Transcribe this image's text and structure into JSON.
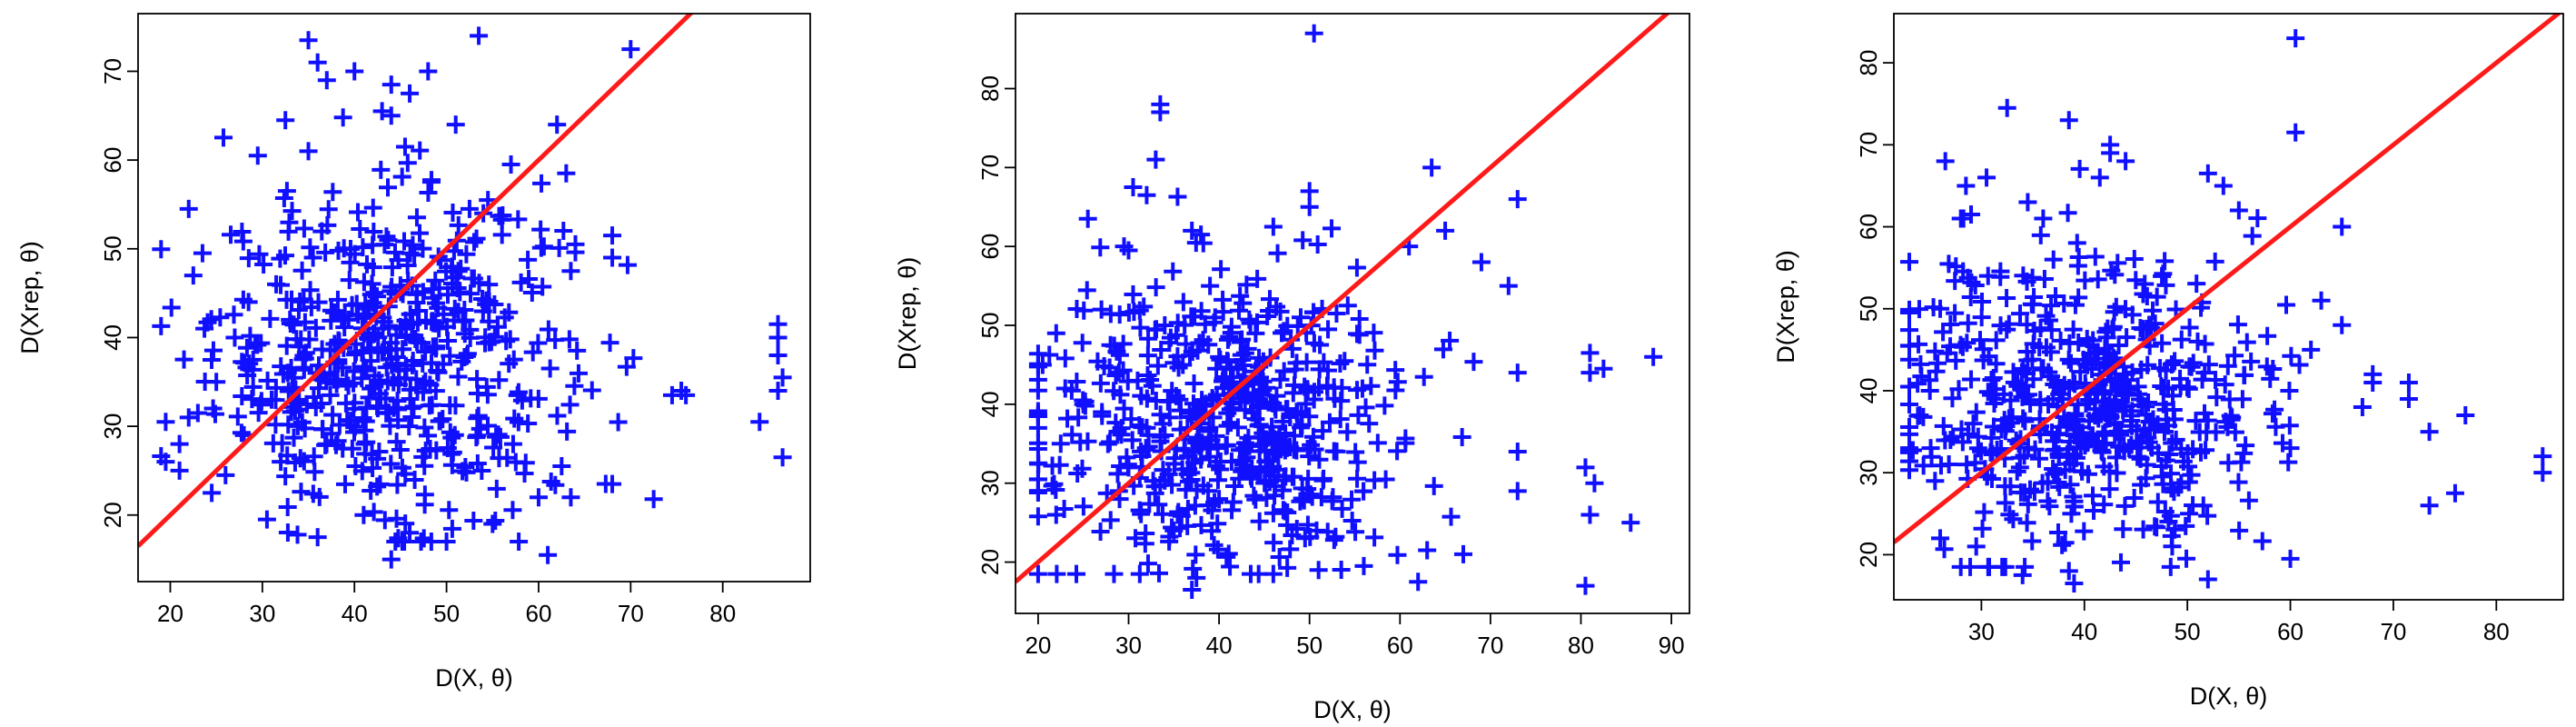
{
  "chart_data": [
    {
      "type": "scatter",
      "title": "",
      "xlabel": "D(X, θ)",
      "ylabel": "D(Xrep, θ)",
      "xlim": [
        16.5,
        89.5
      ],
      "ylim": [
        12.5,
        76.5
      ],
      "xticks": [
        20,
        30,
        40,
        50,
        60,
        70,
        80
      ],
      "yticks": [
        20,
        30,
        40,
        50,
        60,
        70
      ],
      "marker": "plus",
      "point_color": "#1010ff",
      "reference_line": {
        "slope": 1,
        "intercept": 0,
        "color": "#ff1a1a"
      },
      "n_points": 620,
      "x_mean": 44,
      "x_sd": 9.5,
      "y_mean": 38,
      "y_sd": 9,
      "points": [
        [
          35,
          73.5
        ],
        [
          53.5,
          74
        ],
        [
          70,
          72.5
        ],
        [
          36,
          71
        ],
        [
          40,
          70
        ],
        [
          48,
          70
        ],
        [
          37,
          69
        ],
        [
          44,
          68.5
        ],
        [
          46,
          67.5
        ],
        [
          43,
          65.5
        ],
        [
          44,
          65
        ],
        [
          32.5,
          64.5
        ],
        [
          62,
          64
        ],
        [
          51,
          64
        ],
        [
          35,
          61
        ],
        [
          29.5,
          60.5
        ],
        [
          45.5,
          61.5
        ],
        [
          57,
          59.5
        ],
        [
          63,
          58.5
        ],
        [
          54.5,
          55.5
        ],
        [
          68,
          51.5
        ],
        [
          68,
          49
        ],
        [
          22,
          54.5
        ],
        [
          52.5,
          54.5
        ],
        [
          54,
          54
        ],
        [
          22.5,
          47
        ],
        [
          23.5,
          49.5
        ],
        [
          64,
          50.5
        ],
        [
          63.5,
          47.5
        ],
        [
          86,
          41.5
        ],
        [
          86,
          40
        ],
        [
          86,
          38
        ],
        [
          86.5,
          35.5
        ],
        [
          86,
          34
        ],
        [
          84,
          30.5
        ],
        [
          86.5,
          26.5
        ],
        [
          74.5,
          33.5
        ],
        [
          75.5,
          34
        ],
        [
          76,
          33.5
        ],
        [
          68,
          23.5
        ],
        [
          63.5,
          22
        ],
        [
          61,
          15.5
        ],
        [
          44,
          15
        ],
        [
          22,
          31
        ],
        [
          19.5,
          30.5
        ],
        [
          19.5,
          26
        ],
        [
          23,
          31.5
        ],
        [
          21,
          28
        ],
        [
          30.5,
          19.5
        ],
        [
          36,
          17.5
        ],
        [
          41,
          20
        ],
        [
          46,
          18
        ],
        [
          50,
          17
        ],
        [
          55,
          19
        ],
        [
          60,
          22
        ],
        [
          62.5,
          25.5
        ],
        [
          24.5,
          22.5
        ],
        [
          26,
          24.5
        ],
        [
          28,
          29
        ],
        [
          32,
          26
        ],
        [
          21,
          25
        ],
        [
          25,
          35
        ],
        [
          27,
          40
        ],
        [
          28.5,
          44
        ],
        [
          29,
          37.5
        ],
        [
          31,
          33
        ],
        [
          31.5,
          46
        ],
        [
          33,
          42
        ],
        [
          34,
          39
        ],
        [
          35.5,
          49
        ]
      ],
      "x_range_points": [
        19,
        87
      ],
      "y_range_points": [
        15,
        74
      ]
    },
    {
      "type": "scatter",
      "title": "",
      "xlabel": "D(X, θ)",
      "ylabel": "D(Xrep, θ)",
      "xlim": [
        17.5,
        92
      ],
      "ylim": [
        13.5,
        89.5
      ],
      "xticks": [
        20,
        30,
        40,
        50,
        60,
        70,
        80,
        90
      ],
      "yticks": [
        20,
        30,
        40,
        50,
        60,
        70,
        80
      ],
      "marker": "plus",
      "point_color": "#1010ff",
      "reference_line": {
        "slope": 1,
        "intercept": 0,
        "color": "#ff1a1a"
      },
      "n_points": 620,
      "x_mean": 40,
      "x_sd": 10,
      "y_mean": 38,
      "y_sd": 9,
      "points": [
        [
          50.5,
          87
        ],
        [
          33.5,
          78
        ],
        [
          33.5,
          77
        ],
        [
          33,
          71
        ],
        [
          25.5,
          63.5
        ],
        [
          30.5,
          67.5
        ],
        [
          32,
          66.5
        ],
        [
          63.5,
          70
        ],
        [
          50,
          67
        ],
        [
          50,
          65
        ],
        [
          73,
          66
        ],
        [
          65,
          62
        ],
        [
          29.5,
          60
        ],
        [
          30,
          59.5
        ],
        [
          37,
          62
        ],
        [
          38,
          61.5
        ],
        [
          46,
          62.5
        ],
        [
          61,
          60
        ],
        [
          69,
          58
        ],
        [
          72,
          55
        ],
        [
          88,
          46
        ],
        [
          81,
          46.5
        ],
        [
          81,
          44
        ],
        [
          82.5,
          44.5
        ],
        [
          73,
          44
        ],
        [
          73,
          34
        ],
        [
          73,
          29
        ],
        [
          80.5,
          32
        ],
        [
          81.5,
          30
        ],
        [
          81,
          26
        ],
        [
          85.5,
          25
        ],
        [
          80.5,
          17
        ],
        [
          37,
          16.5
        ],
        [
          37.5,
          18
        ],
        [
          46,
          18.5
        ],
        [
          51,
          19
        ],
        [
          56,
          19.5
        ],
        [
          62,
          17.5
        ],
        [
          67,
          21
        ],
        [
          63,
          21.5
        ],
        [
          20,
          38.5
        ],
        [
          20,
          30.5
        ],
        [
          20.5,
          45
        ],
        [
          22,
          49
        ],
        [
          22.5,
          35
        ],
        [
          23,
          42
        ],
        [
          22,
          26
        ],
        [
          25,
          40
        ],
        [
          27,
          52
        ],
        [
          28,
          47.5
        ],
        [
          29,
          28
        ],
        [
          30,
          32
        ],
        [
          31,
          43
        ],
        [
          32,
          37
        ],
        [
          34,
          50
        ],
        [
          35,
          24
        ],
        [
          36,
          45
        ],
        [
          38,
          33
        ],
        [
          39,
          55
        ],
        [
          40,
          28
        ]
      ],
      "x_range_points": [
        20,
        88
      ],
      "y_range_points": [
        16.5,
        87
      ]
    },
    {
      "type": "scatter",
      "title": "",
      "xlabel": "D(X, θ)",
      "ylabel": "D(Xrep, θ)",
      "xlim": [
        21.5,
        86.5
      ],
      "ylim": [
        14.5,
        86
      ],
      "xticks": [
        30,
        40,
        50,
        60,
        70,
        80
      ],
      "yticks": [
        20,
        30,
        40,
        50,
        60,
        70,
        80
      ],
      "marker": "plus",
      "point_color": "#1010ff",
      "reference_line": {
        "slope": 1,
        "intercept": 0,
        "color": "#ff1a1a"
      },
      "n_points": 620,
      "x_mean": 40,
      "x_sd": 9,
      "y_mean": 38,
      "y_sd": 9,
      "points": [
        [
          60.5,
          83
        ],
        [
          32.5,
          74.5
        ],
        [
          38.5,
          73
        ],
        [
          60.5,
          71.5
        ],
        [
          42.5,
          70
        ],
        [
          42.5,
          69
        ],
        [
          44,
          68
        ],
        [
          26.5,
          68
        ],
        [
          28.5,
          65
        ],
        [
          30.5,
          66
        ],
        [
          41.5,
          66
        ],
        [
          52,
          66.5
        ],
        [
          53.5,
          65
        ],
        [
          65,
          60
        ],
        [
          55,
          62
        ],
        [
          34.5,
          63
        ],
        [
          28,
          61
        ],
        [
          29,
          61.5
        ],
        [
          36,
          61
        ],
        [
          37,
          56
        ],
        [
          84.5,
          32
        ],
        [
          84.5,
          30
        ],
        [
          77,
          37
        ],
        [
          76,
          27.5
        ],
        [
          73.5,
          26
        ],
        [
          73.5,
          35
        ],
        [
          71.5,
          41
        ],
        [
          71.5,
          39
        ],
        [
          68,
          42
        ],
        [
          68,
          41
        ],
        [
          67,
          38
        ],
        [
          65,
          48
        ],
        [
          63,
          51
        ],
        [
          62,
          45
        ],
        [
          60,
          33
        ],
        [
          60,
          19.5
        ],
        [
          52,
          17
        ],
        [
          39,
          16.5
        ],
        [
          38.5,
          18
        ],
        [
          34,
          17.5
        ],
        [
          28,
          18.5
        ],
        [
          29.5,
          21
        ],
        [
          26,
          22
        ],
        [
          23,
          45.5
        ],
        [
          23,
          33
        ],
        [
          24,
          37
        ],
        [
          25,
          40
        ],
        [
          25.5,
          29
        ],
        [
          26,
          50
        ],
        [
          27,
          34
        ]
      ],
      "x_range_points": [
        23,
        85
      ],
      "y_range_points": [
        16.5,
        83
      ]
    }
  ]
}
